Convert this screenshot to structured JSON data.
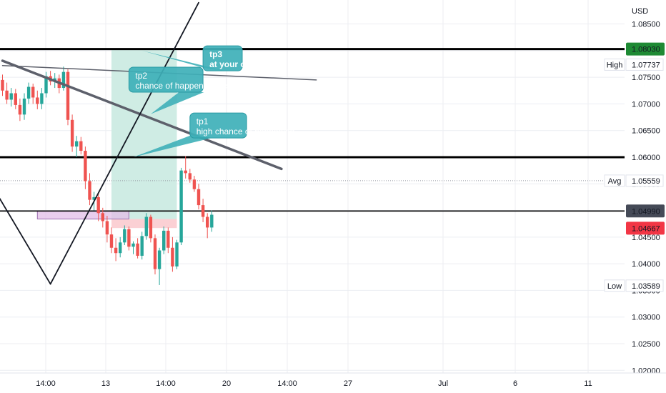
{
  "chart_data": {
    "type": "candlestick",
    "currency": "USD",
    "x_ticks": [
      "14:00",
      "13",
      "14:00",
      "20",
      "14:00",
      "27",
      "Jul",
      "6",
      "11"
    ],
    "y_ticks": [
      "1.08500",
      "1.08000",
      "1.07500",
      "1.07000",
      "1.06500",
      "1.06000",
      "1.05500",
      "1.05000",
      "1.04500",
      "1.04000",
      "1.03500",
      "1.03000",
      "1.02500",
      "1.02000"
    ],
    "ylim": [
      1.0195,
      1.0895
    ],
    "colors": {
      "up": "#26a69a",
      "down": "#ef5350",
      "profit_zone": "#cfece4",
      "stop_zone": "#fbd0d4",
      "entry_zone": "#e1bee7",
      "callout": "#3eb0b8"
    },
    "candles": [
      {
        "o": 1.0745,
        "h": 1.0755,
        "l": 1.0715,
        "c": 1.0725
      },
      {
        "o": 1.0725,
        "h": 1.074,
        "l": 1.07,
        "c": 1.0708
      },
      {
        "o": 1.0708,
        "h": 1.073,
        "l": 1.0695,
        "c": 1.072
      },
      {
        "o": 1.072,
        "h": 1.0728,
        "l": 1.069,
        "c": 1.0698
      },
      {
        "o": 1.0698,
        "h": 1.071,
        "l": 1.0668,
        "c": 1.068
      },
      {
        "o": 1.068,
        "h": 1.072,
        "l": 1.067,
        "c": 1.071
      },
      {
        "o": 1.071,
        "h": 1.074,
        "l": 1.07,
        "c": 1.0732
      },
      {
        "o": 1.0732,
        "h": 1.0738,
        "l": 1.07,
        "c": 1.0712
      },
      {
        "o": 1.0712,
        "h": 1.0725,
        "l": 1.069,
        "c": 1.07
      },
      {
        "o": 1.07,
        "h": 1.073,
        "l": 1.069,
        "c": 1.072
      },
      {
        "o": 1.072,
        "h": 1.076,
        "l": 1.0712,
        "c": 1.0752
      },
      {
        "o": 1.0752,
        "h": 1.0762,
        "l": 1.0735,
        "c": 1.0742
      },
      {
        "o": 1.0742,
        "h": 1.0758,
        "l": 1.073,
        "c": 1.0748
      },
      {
        "o": 1.0748,
        "h": 1.0755,
        "l": 1.072,
        "c": 1.073
      },
      {
        "o": 1.073,
        "h": 1.077,
        "l": 1.0725,
        "c": 1.076
      },
      {
        "o": 1.076,
        "h": 1.0765,
        "l": 1.066,
        "c": 1.067
      },
      {
        "o": 1.067,
        "h": 1.068,
        "l": 1.061,
        "c": 1.062
      },
      {
        "o": 1.062,
        "h": 1.064,
        "l": 1.06,
        "c": 1.063
      },
      {
        "o": 1.063,
        "h": 1.0638,
        "l": 1.0605,
        "c": 1.0612
      },
      {
        "o": 1.0612,
        "h": 1.062,
        "l": 1.054,
        "c": 1.0555
      },
      {
        "o": 1.0555,
        "h": 1.057,
        "l": 1.051,
        "c": 1.052
      },
      {
        "o": 1.052,
        "h": 1.0535,
        "l": 1.05,
        "c": 1.0525
      },
      {
        "o": 1.0525,
        "h": 1.0532,
        "l": 1.048,
        "c": 1.0495
      },
      {
        "o": 1.0495,
        "h": 1.0505,
        "l": 1.0468,
        "c": 1.048
      },
      {
        "o": 1.048,
        "h": 1.049,
        "l": 1.044,
        "c": 1.0455
      },
      {
        "o": 1.0455,
        "h": 1.0468,
        "l": 1.042,
        "c": 1.043
      },
      {
        "o": 1.043,
        "h": 1.0448,
        "l": 1.0405,
        "c": 1.042
      },
      {
        "o": 1.042,
        "h": 1.045,
        "l": 1.0412,
        "c": 1.044
      },
      {
        "o": 1.044,
        "h": 1.0472,
        "l": 1.0435,
        "c": 1.0465
      },
      {
        "o": 1.0465,
        "h": 1.047,
        "l": 1.0425,
        "c": 1.0432
      },
      {
        "o": 1.0432,
        "h": 1.0442,
        "l": 1.0418,
        "c": 1.0438
      },
      {
        "o": 1.0438,
        "h": 1.0448,
        "l": 1.041,
        "c": 1.0415
      },
      {
        "o": 1.0415,
        "h": 1.046,
        "l": 1.0408,
        "c": 1.0452
      },
      {
        "o": 1.0452,
        "h": 1.0495,
        "l": 1.0445,
        "c": 1.0488
      },
      {
        "o": 1.0488,
        "h": 1.0492,
        "l": 1.044,
        "c": 1.0448
      },
      {
        "o": 1.0448,
        "h": 1.0455,
        "l": 1.038,
        "c": 1.039
      },
      {
        "o": 1.039,
        "h": 1.043,
        "l": 1.036,
        "c": 1.0425
      },
      {
        "o": 1.0425,
        "h": 1.047,
        "l": 1.0418,
        "c": 1.0462
      },
      {
        "o": 1.0462,
        "h": 1.0468,
        "l": 1.042,
        "c": 1.043
      },
      {
        "o": 1.043,
        "h": 1.045,
        "l": 1.0385,
        "c": 1.0395
      },
      {
        "o": 1.0395,
        "h": 1.0445,
        "l": 1.039,
        "c": 1.044
      },
      {
        "o": 1.044,
        "h": 1.058,
        "l": 1.0435,
        "c": 1.0575
      },
      {
        "o": 1.0575,
        "h": 1.0602,
        "l": 1.056,
        "c": 1.057
      },
      {
        "o": 1.057,
        "h": 1.0578,
        "l": 1.0552,
        "c": 1.0558
      },
      {
        "o": 1.0558,
        "h": 1.0565,
        "l": 1.0535,
        "c": 1.054
      },
      {
        "o": 1.054,
        "h": 1.055,
        "l": 1.0502,
        "c": 1.051
      },
      {
        "o": 1.051,
        "h": 1.0522,
        "l": 1.0478,
        "c": 1.0488
      },
      {
        "o": 1.0488,
        "h": 1.0495,
        "l": 1.0448,
        "c": 1.0468
      },
      {
        "o": 1.0468,
        "h": 1.05,
        "l": 1.046,
        "c": 1.0492
      }
    ],
    "horizontal_levels": [
      {
        "price": 1.0803,
        "label": "1.08030",
        "style": "solid-thick"
      },
      {
        "price": 1.06,
        "label": "1.06000",
        "style": "solid-thick"
      },
      {
        "price": 1.0499,
        "label": "1.04990",
        "style": "solid"
      },
      {
        "price": 1.05559,
        "label": "1.05559",
        "style": "dotted",
        "tag": "Avg"
      }
    ],
    "stats": [
      {
        "tag": "High",
        "value": "1.07737",
        "price": 1.07737
      },
      {
        "tag": "Avg",
        "value": "1.05559",
        "price": 1.05559
      },
      {
        "tag": "Low",
        "value": "1.03589",
        "price": 1.03589
      }
    ],
    "price_labels": [
      {
        "value": "1.08030",
        "price": 1.0803,
        "kind": "level-green"
      },
      {
        "value": "1.04990",
        "price": 1.0499,
        "kind": "level-dark"
      },
      {
        "value": "1.04667",
        "price": 1.04667,
        "kind": "last-red"
      }
    ],
    "trend_lines": [
      {
        "from": [
          0,
          1.0772
        ],
        "to": [
          72,
          1.0745
        ],
        "width": 1.5,
        "color": "#5d606b"
      },
      {
        "from": [
          0,
          1.0781
        ],
        "to": [
          64,
          1.0578
        ],
        "width": 3.5,
        "color": "#5d606b"
      },
      {
        "from": [
          -3,
          1.0555
        ],
        "to": [
          11,
          1.0362
        ],
        "width": 1.8,
        "color": "#131722"
      },
      {
        "from": [
          11,
          1.0362
        ],
        "to": [
          45,
          1.089
        ],
        "width": 1.8,
        "color": "#131722"
      }
    ],
    "entry_zone": {
      "x0": 8,
      "x1": 29,
      "top": 1.0499,
      "bottom": 1.0484
    },
    "position": {
      "x0": 25,
      "x1": 40,
      "entry": 1.0484,
      "target": 1.0803,
      "stop": 1.0467
    },
    "annotations": [
      {
        "lines": [
          "tp3",
          "at your  own risk"
        ],
        "x0": 46,
        "x1": 55,
        "top": 1.0809,
        "bottom": 1.0762,
        "bold": true,
        "tail_to": [
          32,
          1.08
        ]
      },
      {
        "lines": [
          "tp2",
          "chance of happening is sligthly lo"
        ],
        "x0": 29,
        "x1": 46,
        "top": 1.0769,
        "bottom": 1.0722,
        "bold": false,
        "tail_to": [
          34,
          1.0681
        ]
      },
      {
        "lines": [
          "tp1",
          "high chance of happening"
        ],
        "x0": 43,
        "x1": 56,
        "top": 1.0683,
        "bottom": 1.0636,
        "bold": false,
        "tail_to": [
          30,
          1.06
        ]
      }
    ]
  }
}
